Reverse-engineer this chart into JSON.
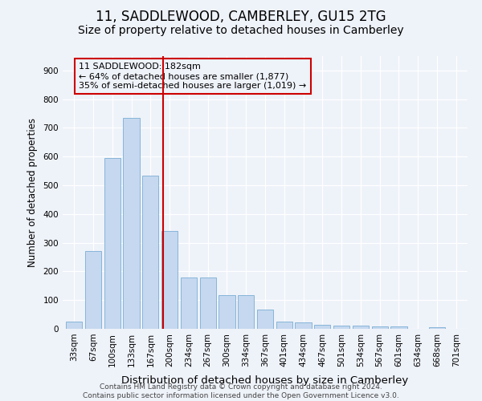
{
  "title1": "11, SADDLEWOOD, CAMBERLEY, GU15 2TG",
  "title2": "Size of property relative to detached houses in Camberley",
  "xlabel": "Distribution of detached houses by size in Camberley",
  "ylabel": "Number of detached properties",
  "categories": [
    "33sqm",
    "67sqm",
    "100sqm",
    "133sqm",
    "167sqm",
    "200sqm",
    "234sqm",
    "267sqm",
    "300sqm",
    "334sqm",
    "367sqm",
    "401sqm",
    "434sqm",
    "467sqm",
    "501sqm",
    "534sqm",
    "567sqm",
    "601sqm",
    "634sqm",
    "668sqm",
    "701sqm"
  ],
  "values": [
    25,
    270,
    595,
    735,
    535,
    340,
    178,
    178,
    118,
    118,
    68,
    25,
    22,
    15,
    12,
    10,
    8,
    7,
    0,
    5,
    0
  ],
  "bar_color": "#c5d8ef",
  "bar_edge_color": "#7aaed4",
  "vline_x_data": 4.65,
  "vline_color": "#cc0000",
  "annotation_text": "11 SADDLEWOOD: 182sqm\n← 64% of detached houses are smaller (1,877)\n35% of semi-detached houses are larger (1,019) →",
  "annotation_box_color": "#cc0000",
  "ylim": [
    0,
    950
  ],
  "yticks": [
    0,
    100,
    200,
    300,
    400,
    500,
    600,
    700,
    800,
    900
  ],
  "footer": "Contains HM Land Registry data © Crown copyright and database right 2024.\nContains public sector information licensed under the Open Government Licence v3.0.",
  "bg_color": "#eef2f9",
  "grid_color": "#ffffff",
  "title1_fontsize": 12,
  "title2_fontsize": 10,
  "xlabel_fontsize": 9.5,
  "ylabel_fontsize": 8.5,
  "tick_fontsize": 7.5,
  "footer_fontsize": 6.5,
  "annot_fontsize": 8
}
